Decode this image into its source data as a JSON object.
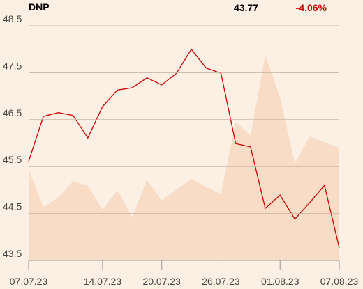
{
  "chart_data": {
    "type": "line",
    "symbol": "DNP",
    "last": 43.77,
    "change": "-4.06%",
    "categories": [
      "07.07.23",
      null,
      null,
      null,
      null,
      "14.07.23",
      null,
      null,
      null,
      "20.07.23",
      null,
      null,
      null,
      "26.07.23",
      null,
      null,
      null,
      "01.08.23",
      null,
      null,
      null,
      "07.08.23"
    ],
    "series": [
      {
        "color": "#f8dcc6",
        "fill": true,
        "values": [
          45.44,
          44.64,
          44.84,
          45.19,
          45.09,
          44.58,
          45.0,
          44.42,
          45.21,
          44.78,
          45.01,
          45.24,
          45.07,
          44.91,
          46.45,
          46.16,
          47.88,
          46.97,
          45.56,
          46.14,
          46.02,
          45.9
        ]
      },
      {
        "color": "#cc0000",
        "fill": false,
        "values": [
          45.61,
          46.57,
          46.65,
          46.59,
          46.11,
          46.78,
          47.13,
          47.18,
          47.39,
          47.24,
          47.49,
          48.0,
          47.6,
          47.49,
          45.99,
          45.92,
          44.61,
          44.89,
          44.38,
          44.73,
          45.1,
          43.77
        ]
      }
    ],
    "ylim": [
      43.5,
      48.5
    ],
    "yticks": [
      43.5,
      44.5,
      45.5,
      46.5,
      47.5,
      48.5
    ],
    "grid": true
  }
}
